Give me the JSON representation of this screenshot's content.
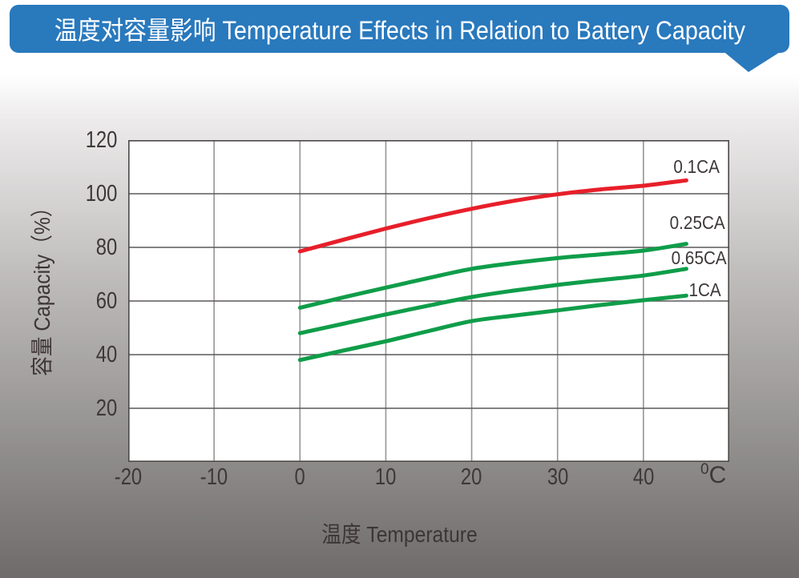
{
  "banner": {
    "title": "温度对容量影响 Temperature Effects in Relation to Battery Capacity"
  },
  "colors": {
    "banner_bg": "#2979bd",
    "banner_text": "#ffffff",
    "red_series": "#e71f2a",
    "green_series": "#0f9d49",
    "axis_text": "#3d3838",
    "plot_bg": "#ffffff",
    "plot_border": "#4c4848",
    "grid_vertical": "#989494",
    "grid_horizontal": "#5c5858"
  },
  "chart_data": {
    "type": "line",
    "title": "温度对容量影响 Temperature Effects in Relation to Battery Capacity",
    "xlabel": "温度  Temperature",
    "ylabel": "容量  Capacity（%）",
    "x_unit_sup": "0",
    "x_unit_base": "C",
    "xlim": [
      -20,
      50
    ],
    "ylim": [
      0,
      120
    ],
    "x_ticks": [
      -20,
      -10,
      0,
      10,
      20,
      30,
      40
    ],
    "y_ticks": [
      120,
      100,
      80,
      60,
      40,
      20
    ],
    "grid": true,
    "legend_position": "inline-right-labels",
    "series": [
      {
        "name": "0.1CA",
        "color": "#e71f2a",
        "points": [
          [
            0,
            78.5
          ],
          [
            5,
            82.8
          ],
          [
            10,
            87
          ],
          [
            15,
            90.9
          ],
          [
            20,
            94.4
          ],
          [
            25,
            97.4
          ],
          [
            30,
            99.8
          ],
          [
            35,
            101.6
          ],
          [
            40,
            103
          ],
          [
            45,
            105
          ]
        ]
      },
      {
        "name": "0.25CA",
        "color": "#0f9d49",
        "points": [
          [
            0,
            57.5
          ],
          [
            5,
            61.3
          ],
          [
            10,
            65
          ],
          [
            15,
            68.6
          ],
          [
            20,
            72
          ],
          [
            25,
            74.2
          ],
          [
            30,
            76
          ],
          [
            35,
            77.4
          ],
          [
            40,
            78.8
          ],
          [
            45,
            81.3
          ]
        ]
      },
      {
        "name": "0.65CA",
        "color": "#0f9d49",
        "points": [
          [
            0,
            48
          ],
          [
            5,
            51.5
          ],
          [
            10,
            55
          ],
          [
            15,
            58.3
          ],
          [
            20,
            61.5
          ],
          [
            25,
            63.9
          ],
          [
            30,
            66
          ],
          [
            35,
            67.8
          ],
          [
            40,
            69.5
          ],
          [
            45,
            72
          ]
        ]
      },
      {
        "name": "1CA",
        "color": "#0f9d49",
        "points": [
          [
            0,
            38
          ],
          [
            5,
            41.5
          ],
          [
            10,
            45
          ],
          [
            15,
            48.8
          ],
          [
            20,
            52.5
          ],
          [
            25,
            54.6
          ],
          [
            30,
            56.5
          ],
          [
            35,
            58.5
          ],
          [
            40,
            60.3
          ],
          [
            45,
            62
          ]
        ]
      }
    ]
  }
}
